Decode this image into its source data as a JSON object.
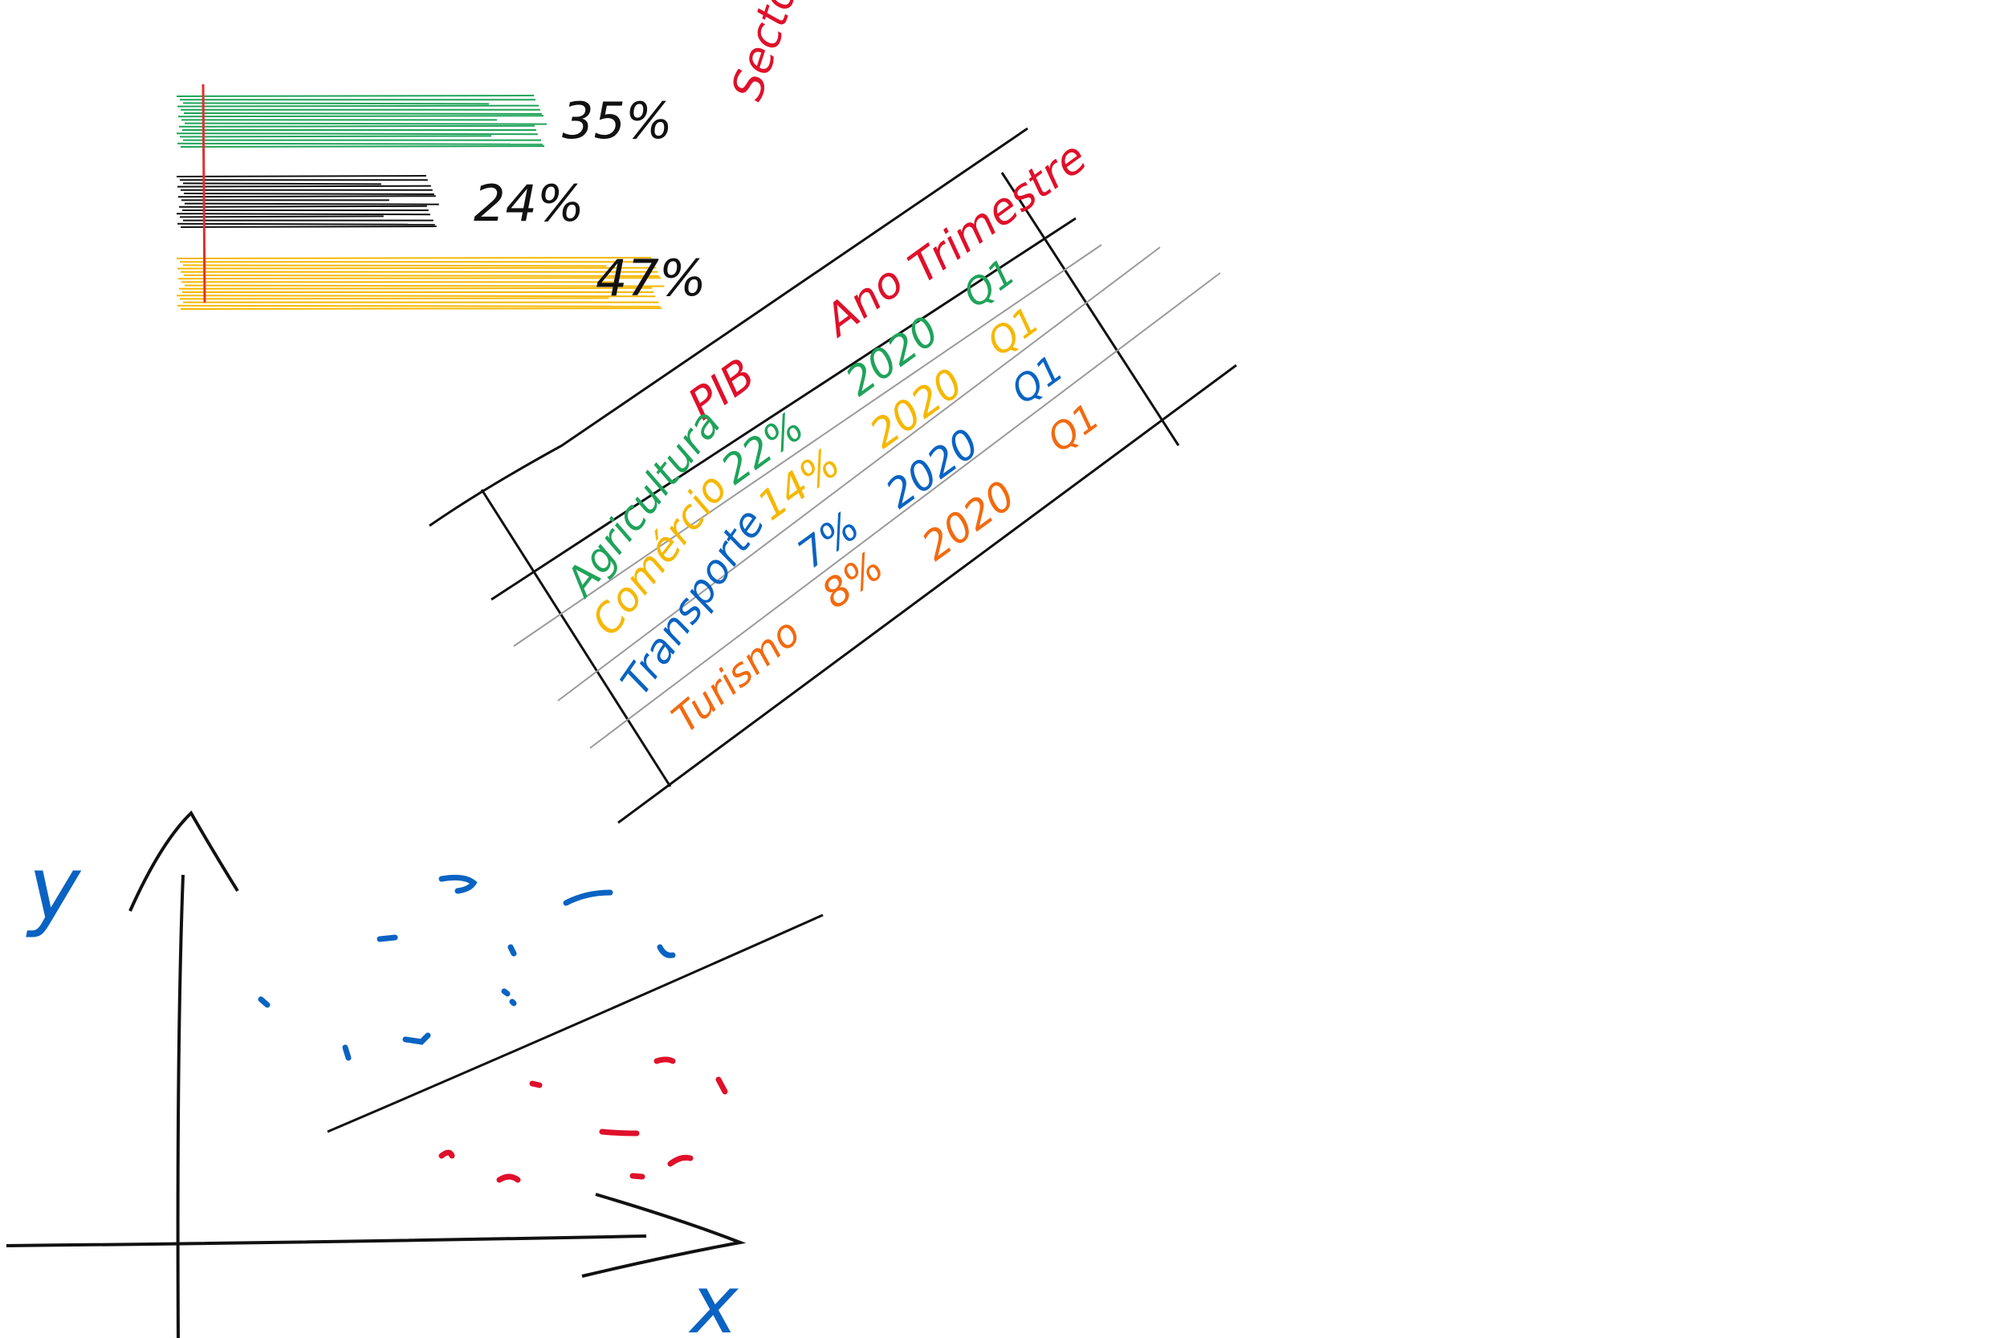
{
  "colors": {
    "green": "#1fa35a",
    "black": "#111111",
    "yellow": "#f5b800",
    "red": "#e0102a",
    "blue": "#0a63c2",
    "orange": "#f26a10",
    "gray": "#9a9a9a",
    "redline": "#e23030"
  },
  "bars": [
    {
      "label": "35%",
      "value": 35,
      "color": "green"
    },
    {
      "label": "24%",
      "value": 24,
      "color": "black"
    },
    {
      "label": "47%",
      "value": 47,
      "color": "yellow"
    }
  ],
  "table": {
    "headers": [
      "Sector",
      "PIB",
      "Ano",
      "Trimestre"
    ],
    "rows": [
      {
        "sector": "Agricultura",
        "pib": "22%",
        "ano": "2020",
        "trim": "Q1",
        "color": "green"
      },
      {
        "sector": "Comércio",
        "pib": "14%",
        "ano": "2020",
        "trim": "Q1",
        "color": "yellow"
      },
      {
        "sector": "Transporte",
        "pib": "7%",
        "ano": "2020",
        "trim": "Q1",
        "color": "blue"
      },
      {
        "sector": "Turismo",
        "pib": "8%",
        "ano": "2020",
        "trim": "Q1",
        "color": "orange"
      }
    ]
  },
  "scatter": {
    "y_label": "y",
    "x_label": "x"
  }
}
